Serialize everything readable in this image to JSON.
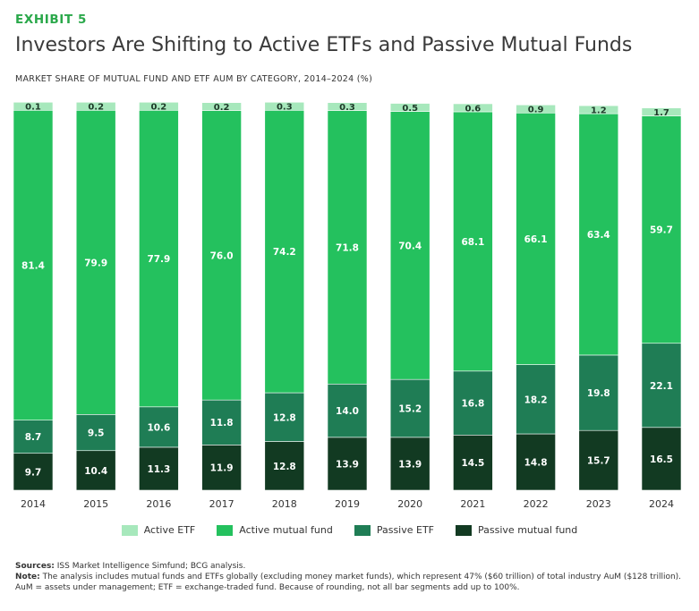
{
  "header": {
    "exhibit": "EXHIBIT 5",
    "title": "Investors Are Shifting to Active ETFs and Passive Mutual Funds",
    "subtitle": "MARKET SHARE OF MUTUAL FUND AND ETF AUM BY CATEGORY, 2014–2024 (%)"
  },
  "colors": {
    "active_etf": "#a7e8bc",
    "active_mutual_fund": "#24c15e",
    "passive_etf": "#1f7d55",
    "passive_mutual_fund": "#123a22"
  },
  "chart_data": {
    "type": "bar",
    "stacked": true,
    "categories": [
      "2014",
      "2015",
      "2016",
      "2017",
      "2018",
      "2019",
      "2020",
      "2021",
      "2022",
      "2023",
      "2024"
    ],
    "series": [
      {
        "name": "Passive mutual fund",
        "values": [
          9.7,
          10.4,
          11.3,
          11.9,
          12.8,
          13.9,
          13.9,
          14.5,
          14.8,
          15.7,
          16.5
        ]
      },
      {
        "name": "Passive ETF",
        "values": [
          8.7,
          9.5,
          10.6,
          11.8,
          12.8,
          14.0,
          15.2,
          16.8,
          18.2,
          19.8,
          22.1
        ]
      },
      {
        "name": "Active mutual fund",
        "values": [
          81.4,
          79.9,
          77.9,
          76.0,
          74.2,
          71.8,
          70.4,
          68.1,
          66.1,
          63.4,
          59.7
        ]
      },
      {
        "name": "Active ETF",
        "values": [
          0.1,
          0.2,
          0.2,
          0.2,
          0.3,
          0.3,
          0.5,
          0.6,
          0.9,
          1.2,
          1.7
        ]
      }
    ],
    "ylim": [
      0,
      100
    ],
    "data_labels": true,
    "legend_position": "bottom-center",
    "grid": false
  },
  "legend": [
    {
      "label": "Active ETF",
      "color_key": "active_etf"
    },
    {
      "label": "Active mutual fund",
      "color_key": "active_mutual_fund"
    },
    {
      "label": "Passive ETF",
      "color_key": "passive_etf"
    },
    {
      "label": "Passive mutual fund",
      "color_key": "passive_mutual_fund"
    }
  ],
  "footer": {
    "sources_label": "Sources:",
    "sources_text": " ISS Market Intelligence Simfund; BCG analysis.",
    "note_label": "Note:",
    "note_text": " The analysis includes mutual funds and ETFs globally (excluding money market funds), which represent 47% ($60 trillion) of total industry AuM ($128 trillion). AuM = assets under management; ETF = exchange-traded fund. Because of rounding, not all bar segments add up to 100%."
  }
}
